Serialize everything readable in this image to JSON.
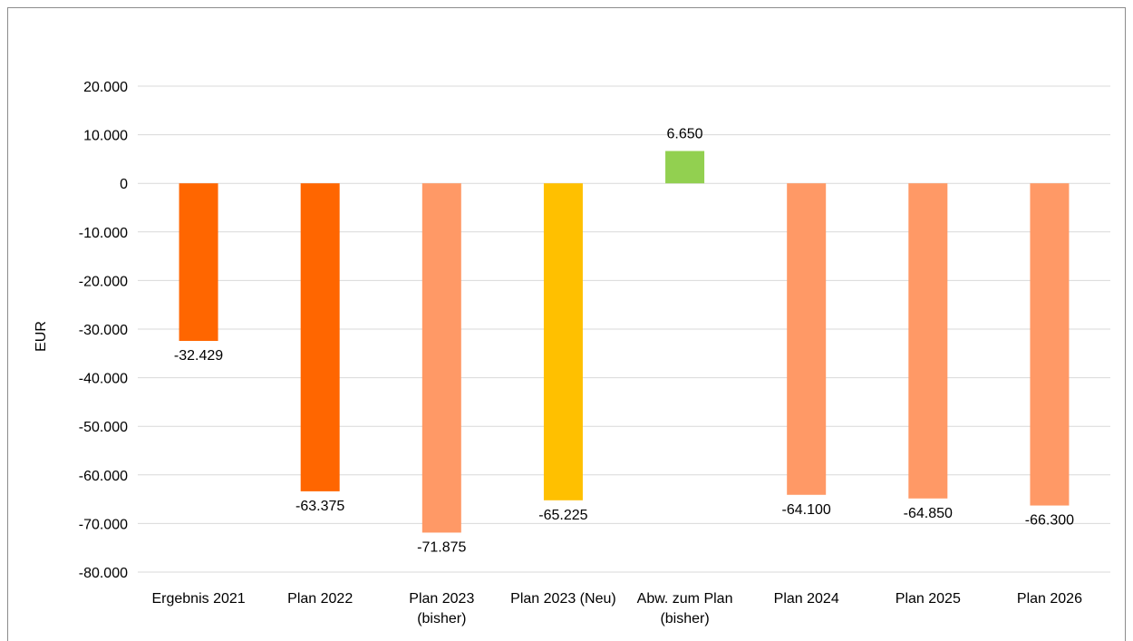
{
  "chart_data": {
    "type": "bar",
    "title": "",
    "xlabel": "",
    "ylabel": "EUR",
    "ylim": [
      -80000,
      20000
    ],
    "ytick_step": 10000,
    "ytick_labels": [
      "20.000",
      "10.000",
      "0",
      "-10.000",
      "-20.000",
      "-30.000",
      "-40.000",
      "-50.000",
      "-60.000",
      "-70.000",
      "-80.000"
    ],
    "grid": true,
    "categories": [
      [
        "Ergebnis 2021"
      ],
      [
        "Plan 2022"
      ],
      [
        "Plan 2023",
        "(bisher)"
      ],
      [
        "Plan 2023 (Neu)"
      ],
      [
        "Abw. zum Plan",
        "(bisher)"
      ],
      [
        "Plan 2024"
      ],
      [
        "Plan 2025"
      ],
      [
        "Plan 2026"
      ]
    ],
    "values": [
      -32429,
      -63375,
      -71875,
      -65225,
      6650,
      -64100,
      -64850,
      -66300
    ],
    "data_labels": [
      "-32.429",
      "-63.375",
      "-71.875",
      "-65.225",
      "6.650",
      "-64.100",
      "-64.850",
      "-66.300"
    ],
    "colors": [
      "#ff6600",
      "#ff6600",
      "#ff9966",
      "#ffc000",
      "#92d050",
      "#ff9966",
      "#ff9966",
      "#ff9966"
    ]
  }
}
